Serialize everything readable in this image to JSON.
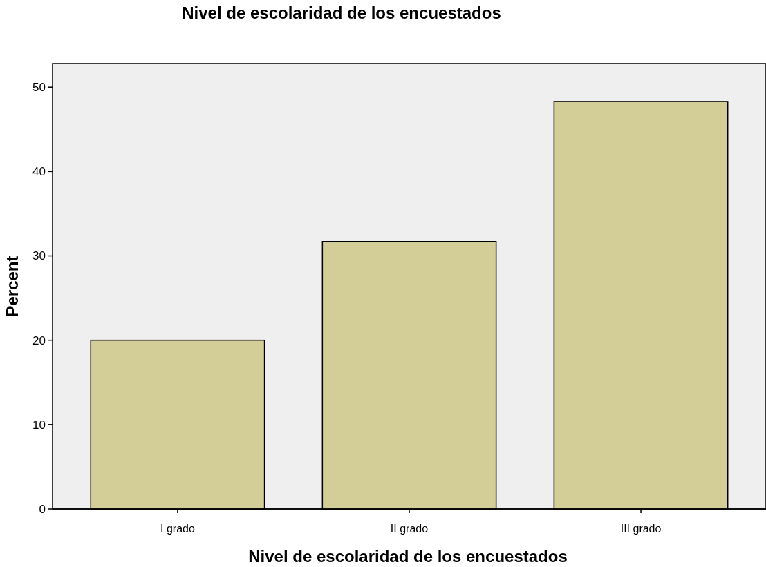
{
  "chart_data": {
    "type": "bar",
    "title": "Nivel de escolaridad de los encuestados",
    "xlabel": "Nivel de escolaridad de los encuestados",
    "ylabel": "Percent",
    "categories": [
      "I grado",
      "II grado",
      "III grado"
    ],
    "values": [
      20,
      31.7,
      48.3
    ],
    "color": "#d3cd98",
    "ylim": [
      0,
      52.8
    ],
    "yticks": [
      0,
      10,
      20,
      30,
      40,
      50
    ],
    "grid": false
  }
}
